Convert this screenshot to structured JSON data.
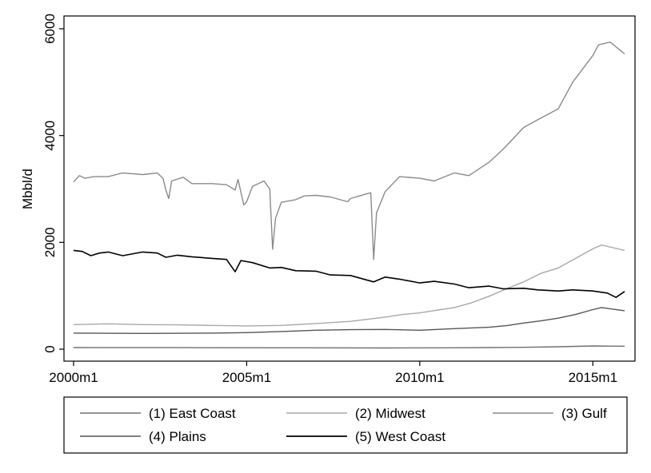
{
  "chart_data": {
    "type": "line",
    "title": "",
    "xlabel": "",
    "ylabel": "Mbbl/d",
    "x_range": [
      "2000m1",
      "2015m12"
    ],
    "xticks": [
      "2000m1",
      "2005m1",
      "2010m1",
      "2015m1"
    ],
    "ylim": [
      0,
      6000
    ],
    "yticks": [
      0,
      2000,
      4000,
      6000
    ],
    "grid": false,
    "legend_position": "bottom",
    "series": [
      {
        "name": "(1) East Coast",
        "color": "#707070",
        "points": [
          [
            "2000m1",
            30
          ],
          [
            "2003m1",
            28
          ],
          [
            "2006m1",
            25
          ],
          [
            "2009m1",
            22
          ],
          [
            "2011m1",
            25
          ],
          [
            "2012m1",
            30
          ],
          [
            "2013m1",
            35
          ],
          [
            "2014m1",
            45
          ],
          [
            "2015m1",
            60
          ],
          [
            "2015m12",
            55
          ]
        ]
      },
      {
        "name": "(2) Midwest",
        "color": "#a8a8a8",
        "points": [
          [
            "2000m1",
            460
          ],
          [
            "2001m1",
            475
          ],
          [
            "2002m1",
            460
          ],
          [
            "2003m1",
            455
          ],
          [
            "2004m1",
            445
          ],
          [
            "2005m1",
            435
          ],
          [
            "2006m1",
            445
          ],
          [
            "2007m1",
            480
          ],
          [
            "2008m1",
            520
          ],
          [
            "2009m1",
            600
          ],
          [
            "2009m7",
            650
          ],
          [
            "2010m1",
            680
          ],
          [
            "2010m7",
            730
          ],
          [
            "2011m1",
            780
          ],
          [
            "2011m7",
            870
          ],
          [
            "2012m1",
            990
          ],
          [
            "2012m7",
            1130
          ],
          [
            "2013m1",
            1260
          ],
          [
            "2013m7",
            1420
          ],
          [
            "2014m1",
            1520
          ],
          [
            "2014m7",
            1700
          ],
          [
            "2015m1",
            1880
          ],
          [
            "2015m4",
            1950
          ],
          [
            "2015m8",
            1900
          ],
          [
            "2015m12",
            1850
          ]
        ]
      },
      {
        "name": "(3) Gulf",
        "color": "#8a8a8a",
        "points": [
          [
            "2000m1",
            3130
          ],
          [
            "2000m3",
            3250
          ],
          [
            "2000m5",
            3200
          ],
          [
            "2000m8",
            3230
          ],
          [
            "2001m1",
            3230
          ],
          [
            "2001m6",
            3300
          ],
          [
            "2002m1",
            3270
          ],
          [
            "2002m6",
            3300
          ],
          [
            "2002m8",
            3200
          ],
          [
            "2002m9",
            2980
          ],
          [
            "2002m10",
            2820
          ],
          [
            "2002m11",
            3150
          ],
          [
            "2003m3",
            3220
          ],
          [
            "2003m6",
            3100
          ],
          [
            "2004m1",
            3100
          ],
          [
            "2004m6",
            3080
          ],
          [
            "2004m9",
            2980
          ],
          [
            "2004m10",
            3180
          ],
          [
            "2004m12",
            2700
          ],
          [
            "2005m1",
            2760
          ],
          [
            "2005m3",
            3050
          ],
          [
            "2005m7",
            3150
          ],
          [
            "2005m9",
            3000
          ],
          [
            "2005m10",
            1870
          ],
          [
            "2005m11",
            2450
          ],
          [
            "2006m1",
            2750
          ],
          [
            "2006m6",
            2800
          ],
          [
            "2006m9",
            2870
          ],
          [
            "2007m1",
            2880
          ],
          [
            "2007m6",
            2850
          ],
          [
            "2007m12",
            2760
          ],
          [
            "2008m1",
            2820
          ],
          [
            "2008m6",
            2900
          ],
          [
            "2008m8",
            2930
          ],
          [
            "2008m9",
            1680
          ],
          [
            "2008m10",
            2550
          ],
          [
            "2009m1",
            2950
          ],
          [
            "2009m6",
            3230
          ],
          [
            "2010m1",
            3200
          ],
          [
            "2010m6",
            3150
          ],
          [
            "2011m1",
            3300
          ],
          [
            "2011m6",
            3250
          ],
          [
            "2012m1",
            3500
          ],
          [
            "2012m6",
            3750
          ],
          [
            "2013m1",
            4150
          ],
          [
            "2013m6",
            4300
          ],
          [
            "2014m1",
            4500
          ],
          [
            "2014m6",
            5000
          ],
          [
            "2015m1",
            5500
          ],
          [
            "2015m3",
            5700
          ],
          [
            "2015m7",
            5750
          ],
          [
            "2015m12",
            5530
          ]
        ]
      },
      {
        "name": "(4) Plains",
        "color": "#555555",
        "points": [
          [
            "2000m1",
            300
          ],
          [
            "2002m1",
            295
          ],
          [
            "2004m1",
            300
          ],
          [
            "2005m1",
            310
          ],
          [
            "2006m1",
            330
          ],
          [
            "2007m1",
            355
          ],
          [
            "2008m1",
            365
          ],
          [
            "2009m1",
            370
          ],
          [
            "2010m1",
            355
          ],
          [
            "2011m1",
            385
          ],
          [
            "2012m1",
            410
          ],
          [
            "2012m7",
            440
          ],
          [
            "2013m1",
            490
          ],
          [
            "2013m7",
            530
          ],
          [
            "2014m1",
            580
          ],
          [
            "2014m7",
            650
          ],
          [
            "2015m1",
            740
          ],
          [
            "2015m4",
            780
          ],
          [
            "2015m12",
            720
          ]
        ]
      },
      {
        "name": "(5) West Coast",
        "color": "#000000",
        "points": [
          [
            "2000m1",
            1850
          ],
          [
            "2000m4",
            1830
          ],
          [
            "2000m7",
            1750
          ],
          [
            "2000m10",
            1800
          ],
          [
            "2001m1",
            1820
          ],
          [
            "2001m6",
            1750
          ],
          [
            "2002m1",
            1820
          ],
          [
            "2002m6",
            1800
          ],
          [
            "2002m9",
            1720
          ],
          [
            "2003m1",
            1760
          ],
          [
            "2003m6",
            1730
          ],
          [
            "2004m1",
            1700
          ],
          [
            "2004m6",
            1680
          ],
          [
            "2004m9",
            1450
          ],
          [
            "2004m11",
            1660
          ],
          [
            "2005m3",
            1620
          ],
          [
            "2005m9",
            1520
          ],
          [
            "2006m1",
            1530
          ],
          [
            "2006m6",
            1470
          ],
          [
            "2007m1",
            1460
          ],
          [
            "2007m6",
            1390
          ],
          [
            "2008m1",
            1380
          ],
          [
            "2008m9",
            1260
          ],
          [
            "2009m1",
            1350
          ],
          [
            "2009m6",
            1310
          ],
          [
            "2010m1",
            1240
          ],
          [
            "2010m6",
            1270
          ],
          [
            "2011m1",
            1220
          ],
          [
            "2011m6",
            1150
          ],
          [
            "2012m1",
            1180
          ],
          [
            "2012m6",
            1130
          ],
          [
            "2013m1",
            1140
          ],
          [
            "2013m6",
            1110
          ],
          [
            "2014m1",
            1090
          ],
          [
            "2014m6",
            1110
          ],
          [
            "2015m1",
            1090
          ],
          [
            "2015m6",
            1050
          ],
          [
            "2015m9",
            970
          ],
          [
            "2015m12",
            1080
          ]
        ]
      }
    ]
  }
}
